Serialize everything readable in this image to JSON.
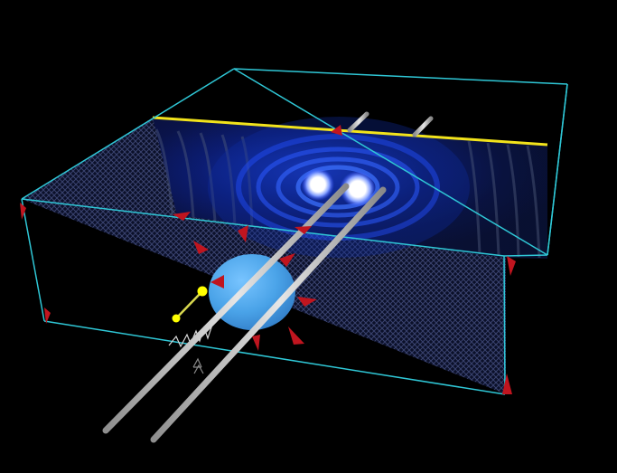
{
  "scene": {
    "background_color": "#000000",
    "box_edge_color": "#2fc7d6",
    "screen_top_edge_color": "#f2e31b",
    "floor_mesh_color": "#3f51b5",
    "wave_pattern_color": "#1534d6",
    "interference_maxima_color": "#ffffff",
    "barrier_color": "#4aa3e8",
    "marker_color": "#c0151f",
    "beam_color": "#b9b9b9",
    "emitter_color": "#ffff00"
  }
}
